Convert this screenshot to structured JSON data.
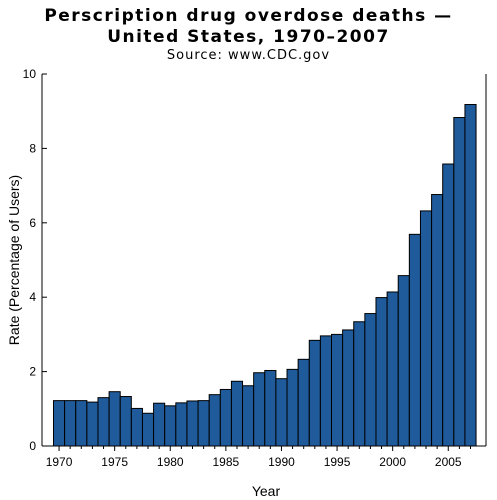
{
  "chart_data": {
    "type": "bar",
    "title_line1": "Perscription drug overdose deaths —",
    "title_line2": "United States, 1970–2007",
    "subtitle": "Source: www.CDC.gov",
    "xlabel": "Year",
    "ylabel": "Rate (Percentage of Users)",
    "ylim": [
      0,
      10
    ],
    "yticks": [
      0,
      2,
      4,
      6,
      8,
      10
    ],
    "xticks": [
      1970,
      1975,
      1980,
      1985,
      1990,
      1995,
      2000,
      2005
    ],
    "bar_color": "#1f5a9a",
    "grid": false,
    "categories": [
      1970,
      1971,
      1972,
      1973,
      1974,
      1975,
      1976,
      1977,
      1978,
      1979,
      1980,
      1981,
      1982,
      1983,
      1984,
      1985,
      1986,
      1987,
      1988,
      1989,
      1990,
      1991,
      1992,
      1993,
      1994,
      1995,
      1996,
      1997,
      1998,
      1999,
      2000,
      2001,
      2002,
      2003,
      2004,
      2005,
      2006,
      2007
    ],
    "values": [
      1.22,
      1.22,
      1.22,
      1.18,
      1.3,
      1.46,
      1.33,
      1.01,
      0.88,
      1.15,
      1.08,
      1.16,
      1.21,
      1.22,
      1.38,
      1.52,
      1.74,
      1.62,
      1.97,
      2.03,
      1.81,
      2.06,
      2.33,
      2.84,
      2.96,
      3.0,
      3.12,
      3.34,
      3.56,
      3.99,
      4.14,
      4.58,
      5.69,
      6.32,
      6.76,
      7.58,
      8.83,
      9.18
    ]
  }
}
